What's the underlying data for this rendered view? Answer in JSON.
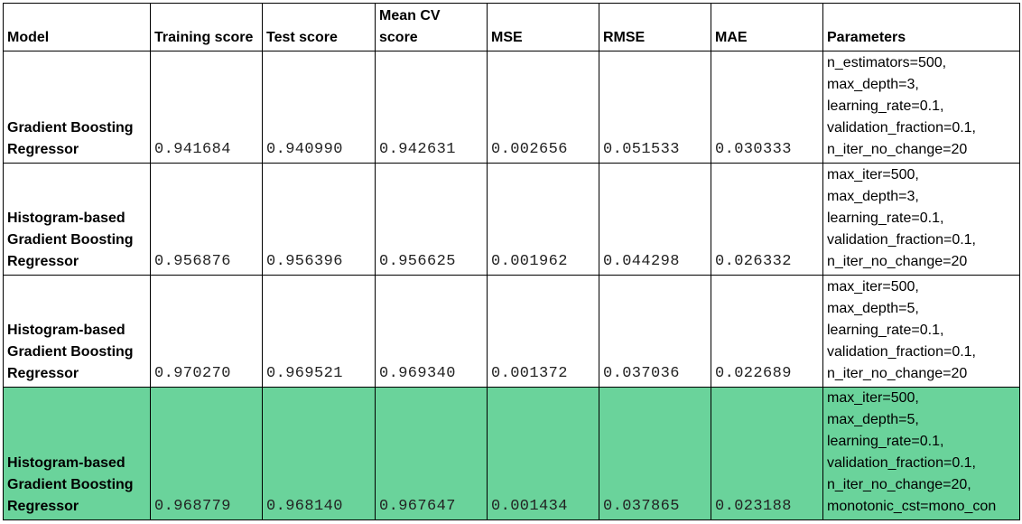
{
  "headers": {
    "model": "Model",
    "training": "Training score",
    "test": "Test score",
    "mean_cv": [
      "Mean CV",
      "score"
    ],
    "mse": "MSE",
    "rmse": "RMSE",
    "mae": "MAE",
    "parameters": "Parameters"
  },
  "rows": [
    {
      "model": [
        "Gradient Boosting",
        "Regressor"
      ],
      "training": "0.941684",
      "test": "0.940990",
      "mean_cv": "0.942631",
      "mse": "0.002656",
      "rmse": "0.051533",
      "mae": "0.030333",
      "params": [
        "n_estimators=500,",
        "max_depth=3,",
        "learning_rate=0.1,",
        "validation_fraction=0.1,",
        "n_iter_no_change=20"
      ]
    },
    {
      "model": [
        "Histogram-based",
        "Gradient Boosting",
        "Regressor"
      ],
      "training": "0.956876",
      "test": "0.956396",
      "mean_cv": "0.956625",
      "mse": "0.001962",
      "rmse": "0.044298",
      "mae": "0.026332",
      "params": [
        "max_iter=500,",
        "max_depth=3,",
        "learning_rate=0.1,",
        "validation_fraction=0.1,",
        "n_iter_no_change=20"
      ]
    },
    {
      "model": [
        "Histogram-based",
        "Gradient Boosting",
        "Regressor"
      ],
      "training": "0.970270",
      "test": "0.969521",
      "mean_cv": "0.969340",
      "mse": "0.001372",
      "rmse": "0.037036",
      "mae": "0.022689",
      "params": [
        "max_iter=500,",
        "max_depth=5,",
        "learning_rate=0.1,",
        "validation_fraction=0.1,",
        "n_iter_no_change=20"
      ]
    },
    {
      "model": [
        "Histogram-based",
        "Gradient Boosting",
        "Regressor"
      ],
      "training": "0.968779",
      "test": "0.968140",
      "mean_cv": "0.967647",
      "mse": "0.001434",
      "rmse": "0.037865",
      "mae": "0.023188",
      "params": [
        "max_iter=500,",
        "max_depth=5,",
        "learning_rate=0.1,",
        "validation_fraction=0.1,",
        "n_iter_no_change=20,",
        "monotonic_cst=mono_con"
      ],
      "highlighted": true
    }
  ],
  "colors": {
    "highlight_row": "#6ad39b",
    "border": "#000000"
  }
}
